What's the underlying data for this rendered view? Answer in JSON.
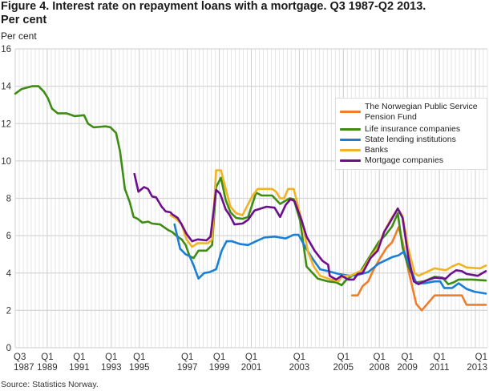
{
  "title": "Figure 4. Interest rate on repayment loans with a mortgage. Q3 1987-Q2 2013.",
  "title_line2": "Per cent",
  "source": "Source: Statistics Norway.",
  "chart_data": {
    "type": "line",
    "title": "Figure 4. Interest rate on repayment loans with a mortgage. Q3 1987-Q2 2013. Per cent",
    "ylabel": "Per cent",
    "ylim": [
      0,
      16
    ],
    "yticks": [
      0,
      2,
      4,
      6,
      8,
      10,
      12,
      14,
      16
    ],
    "xlim": [
      0,
      118
    ],
    "x_ticks": [
      {
        "q": "Q3",
        "y": "1987",
        "x": 0
      },
      {
        "q": "Q1",
        "y": "1989",
        "x": 8
      },
      {
        "q": "Q1",
        "y": "1991",
        "x": 16
      },
      {
        "q": "Q1",
        "y": "1993",
        "x": 24
      },
      {
        "q": "Q1",
        "y": "1995",
        "x": 31
      },
      {
        "q": "Q1",
        "y": "1997",
        "x": 43
      },
      {
        "q": "Q1",
        "y": "1999",
        "x": 51
      },
      {
        "q": "Q1",
        "y": "2001",
        "x": 59
      },
      {
        "q": "Q1",
        "y": "2003",
        "x": 71
      },
      {
        "q": "Q1",
        "y": "2005",
        "x": 82
      },
      {
        "q": "Q1",
        "y": "2008",
        "x": 91
      },
      {
        "q": "Q1",
        "y": "2009",
        "x": 98
      },
      {
        "q": "Q1",
        "y": "2011",
        "x": 106
      },
      {
        "q": "Q1",
        "y": "2013",
        "x": 115
      }
    ],
    "grid": true,
    "legend_placement": "right",
    "series": [
      {
        "name": "The Norwegian Public Service Pension Fund",
        "color": "#f07d2a",
        "points": [
          [
            84.2,
            2.8
          ],
          [
            85.6,
            2.8
          ],
          [
            86.8,
            3.3
          ],
          [
            88.2,
            3.55
          ],
          [
            89.6,
            4.2
          ],
          [
            91.2,
            4.8
          ],
          [
            92.8,
            5.35
          ],
          [
            94.2,
            5.65
          ],
          [
            95.8,
            6.45
          ],
          [
            96.8,
            5.65
          ],
          [
            98.2,
            4.2
          ],
          [
            100.2,
            2.35
          ],
          [
            101.6,
            2.0
          ],
          [
            104.8,
            2.8
          ],
          [
            111.6,
            2.8
          ],
          [
            112.8,
            2.3
          ],
          [
            117.6,
            2.3
          ]
        ]
      },
      {
        "name": "Life insurance companies",
        "color": "#3e8c14",
        "points": [
          [
            0,
            13.6
          ],
          [
            1.6,
            13.85
          ],
          [
            4.2,
            14.0
          ],
          [
            5.8,
            14.0
          ],
          [
            7.2,
            13.7
          ],
          [
            8.2,
            13.35
          ],
          [
            9.2,
            12.8
          ],
          [
            10.6,
            12.55
          ],
          [
            12.8,
            12.55
          ],
          [
            14.8,
            12.4
          ],
          [
            17.2,
            12.45
          ],
          [
            18.2,
            12.0
          ],
          [
            19.6,
            11.8
          ],
          [
            22.6,
            11.85
          ],
          [
            23.8,
            11.8
          ],
          [
            25.2,
            11.5
          ],
          [
            26.2,
            10.5
          ],
          [
            27.4,
            8.5
          ],
          [
            28.6,
            7.8
          ],
          [
            29.6,
            7.0
          ],
          [
            30.6,
            6.9
          ],
          [
            31.8,
            6.7
          ],
          [
            33.2,
            6.75
          ],
          [
            34.2,
            6.65
          ],
          [
            36.2,
            6.6
          ],
          [
            38.2,
            6.3
          ],
          [
            39.2,
            6.2
          ],
          [
            40.2,
            6.0
          ],
          [
            41.6,
            5.8
          ],
          [
            42.6,
            5.5
          ],
          [
            43.6,
            4.9
          ],
          [
            44.6,
            4.8
          ],
          [
            45.8,
            5.2
          ],
          [
            47.8,
            5.2
          ],
          [
            49.2,
            5.5
          ],
          [
            50.2,
            8.6
          ],
          [
            51.4,
            9.1
          ],
          [
            52.6,
            7.9
          ],
          [
            53.8,
            7.25
          ],
          [
            55.2,
            6.95
          ],
          [
            56.8,
            6.9
          ],
          [
            58.2,
            7.0
          ],
          [
            60.2,
            8.3
          ],
          [
            61.6,
            8.15
          ],
          [
            64.2,
            8.15
          ],
          [
            66.2,
            7.7
          ],
          [
            68.6,
            8.0
          ],
          [
            69.6,
            7.95
          ],
          [
            71.2,
            6.8
          ],
          [
            72.8,
            4.35
          ],
          [
            75.6,
            3.7
          ],
          [
            78.2,
            3.55
          ],
          [
            80.2,
            3.5
          ],
          [
            81.6,
            3.35
          ],
          [
            82.8,
            3.65
          ],
          [
            84.2,
            3.85
          ],
          [
            86.2,
            4.05
          ],
          [
            88.8,
            4.95
          ],
          [
            90.8,
            5.65
          ],
          [
            92.6,
            6.05
          ],
          [
            94.2,
            6.5
          ],
          [
            95.6,
            7.2
          ],
          [
            96.8,
            5.35
          ],
          [
            98.2,
            4.35
          ],
          [
            100.2,
            3.5
          ],
          [
            102.2,
            3.55
          ],
          [
            104.8,
            3.8
          ],
          [
            106.8,
            3.75
          ],
          [
            108.2,
            3.4
          ],
          [
            109.6,
            3.5
          ],
          [
            110.8,
            3.65
          ],
          [
            114.2,
            3.65
          ],
          [
            117.6,
            3.6
          ]
        ]
      },
      {
        "name": "State lending institutions",
        "color": "#1a7fd4",
        "points": [
          [
            39.8,
            6.6
          ],
          [
            41.2,
            5.3
          ],
          [
            42.6,
            5.0
          ],
          [
            43.6,
            4.9
          ],
          [
            44.6,
            4.4
          ],
          [
            45.8,
            3.7
          ],
          [
            47.2,
            4.0
          ],
          [
            48.6,
            4.05
          ],
          [
            50.2,
            4.2
          ],
          [
            51.6,
            5.2
          ],
          [
            52.8,
            5.7
          ],
          [
            54.2,
            5.7
          ],
          [
            56.2,
            5.55
          ],
          [
            58.2,
            5.5
          ],
          [
            60.2,
            5.7
          ],
          [
            62.2,
            5.9
          ],
          [
            64.8,
            5.95
          ],
          [
            67.6,
            5.85
          ],
          [
            69.6,
            6.05
          ],
          [
            70.8,
            6.05
          ],
          [
            72.6,
            5.35
          ],
          [
            74.2,
            4.8
          ],
          [
            76.2,
            4.2
          ],
          [
            78.2,
            4.1
          ],
          [
            80.8,
            3.95
          ],
          [
            83.6,
            3.85
          ],
          [
            85.6,
            3.9
          ],
          [
            88.2,
            4.05
          ],
          [
            90.8,
            4.5
          ],
          [
            94.2,
            4.85
          ],
          [
            95.8,
            4.95
          ],
          [
            97.2,
            5.15
          ],
          [
            98.6,
            4.35
          ],
          [
            100.2,
            3.45
          ],
          [
            102.2,
            3.45
          ],
          [
            104.8,
            3.55
          ],
          [
            106.2,
            3.55
          ],
          [
            107.2,
            3.2
          ],
          [
            109.2,
            3.2
          ],
          [
            110.8,
            3.45
          ],
          [
            112.8,
            3.15
          ],
          [
            114.8,
            3.0
          ],
          [
            117.6,
            2.9
          ]
        ]
      },
      {
        "name": "Banks",
        "color": "#f0b323",
        "points": [
          [
            38.8,
            7.1
          ],
          [
            40.2,
            6.9
          ],
          [
            41.6,
            6.6
          ],
          [
            42.8,
            5.8
          ],
          [
            44.2,
            5.4
          ],
          [
            45.6,
            5.6
          ],
          [
            48.2,
            5.6
          ],
          [
            49.2,
            5.8
          ],
          [
            50.2,
            9.5
          ],
          [
            51.4,
            9.5
          ],
          [
            52.6,
            8.5
          ],
          [
            53.8,
            7.55
          ],
          [
            55.2,
            7.2
          ],
          [
            56.8,
            7.1
          ],
          [
            59.2,
            8.1
          ],
          [
            60.6,
            8.5
          ],
          [
            64.2,
            8.5
          ],
          [
            65.2,
            8.35
          ],
          [
            66.2,
            8.0
          ],
          [
            67.2,
            8.0
          ],
          [
            68.2,
            8.5
          ],
          [
            69.6,
            8.5
          ],
          [
            70.6,
            7.65
          ],
          [
            71.8,
            6.65
          ],
          [
            73.2,
            5.1
          ],
          [
            74.6,
            4.35
          ],
          [
            76.2,
            3.85
          ],
          [
            78.2,
            3.7
          ],
          [
            80.8,
            3.55
          ],
          [
            81.8,
            3.85
          ],
          [
            83.8,
            3.85
          ],
          [
            85.6,
            4.05
          ],
          [
            86.8,
            4.15
          ],
          [
            88.8,
            4.85
          ],
          [
            90.6,
            5.35
          ],
          [
            92.2,
            6.2
          ],
          [
            93.8,
            6.85
          ],
          [
            95.6,
            7.45
          ],
          [
            96.8,
            7.05
          ],
          [
            98.2,
            5.35
          ],
          [
            99.8,
            4.0
          ],
          [
            100.8,
            3.85
          ],
          [
            102.8,
            4.05
          ],
          [
            104.8,
            4.25
          ],
          [
            107.6,
            4.15
          ],
          [
            109.2,
            4.35
          ],
          [
            110.8,
            4.5
          ],
          [
            112.8,
            4.3
          ],
          [
            116.2,
            4.25
          ],
          [
            117.6,
            4.4
          ]
        ]
      },
      {
        "name": "Mortgage companies",
        "color": "#6d0f8c",
        "points": [
          [
            29.8,
            9.3
          ],
          [
            30.8,
            8.35
          ],
          [
            32.2,
            8.6
          ],
          [
            33.2,
            8.5
          ],
          [
            34.2,
            8.1
          ],
          [
            35.2,
            8.05
          ],
          [
            36.6,
            7.55
          ],
          [
            37.6,
            7.3
          ],
          [
            38.8,
            7.25
          ],
          [
            39.2,
            7.15
          ],
          [
            40.6,
            6.95
          ],
          [
            41.6,
            6.6
          ],
          [
            42.8,
            6.1
          ],
          [
            44.2,
            5.7
          ],
          [
            45.6,
            5.8
          ],
          [
            47.8,
            5.75
          ],
          [
            48.8,
            5.95
          ],
          [
            50.2,
            8.45
          ],
          [
            51.2,
            8.25
          ],
          [
            52.6,
            7.4
          ],
          [
            53.6,
            7.1
          ],
          [
            54.8,
            6.6
          ],
          [
            56.8,
            6.65
          ],
          [
            58.2,
            6.85
          ],
          [
            59.8,
            7.35
          ],
          [
            62.8,
            7.55
          ],
          [
            64.8,
            7.5
          ],
          [
            66.2,
            7.0
          ],
          [
            67.6,
            7.65
          ],
          [
            68.8,
            7.95
          ],
          [
            69.8,
            7.85
          ],
          [
            71.6,
            6.8
          ],
          [
            72.8,
            5.95
          ],
          [
            74.8,
            5.2
          ],
          [
            76.8,
            4.65
          ],
          [
            78.2,
            4.45
          ],
          [
            78.6,
            3.85
          ],
          [
            80.2,
            3.65
          ],
          [
            81.6,
            3.85
          ],
          [
            83.2,
            3.65
          ],
          [
            84.6,
            3.65
          ],
          [
            85.6,
            3.95
          ],
          [
            86.8,
            4.0
          ],
          [
            88.8,
            4.8
          ],
          [
            90.6,
            5.2
          ],
          [
            92.2,
            6.2
          ],
          [
            93.6,
            6.7
          ],
          [
            95.6,
            7.45
          ],
          [
            96.8,
            6.95
          ],
          [
            98.2,
            4.9
          ],
          [
            99.6,
            3.55
          ],
          [
            100.8,
            3.4
          ],
          [
            102.2,
            3.55
          ],
          [
            104.8,
            3.75
          ],
          [
            107.6,
            3.7
          ],
          [
            108.8,
            3.95
          ],
          [
            110.2,
            4.15
          ],
          [
            111.6,
            4.1
          ],
          [
            112.8,
            3.95
          ],
          [
            115.6,
            3.85
          ],
          [
            117.6,
            4.1
          ]
        ]
      }
    ]
  }
}
